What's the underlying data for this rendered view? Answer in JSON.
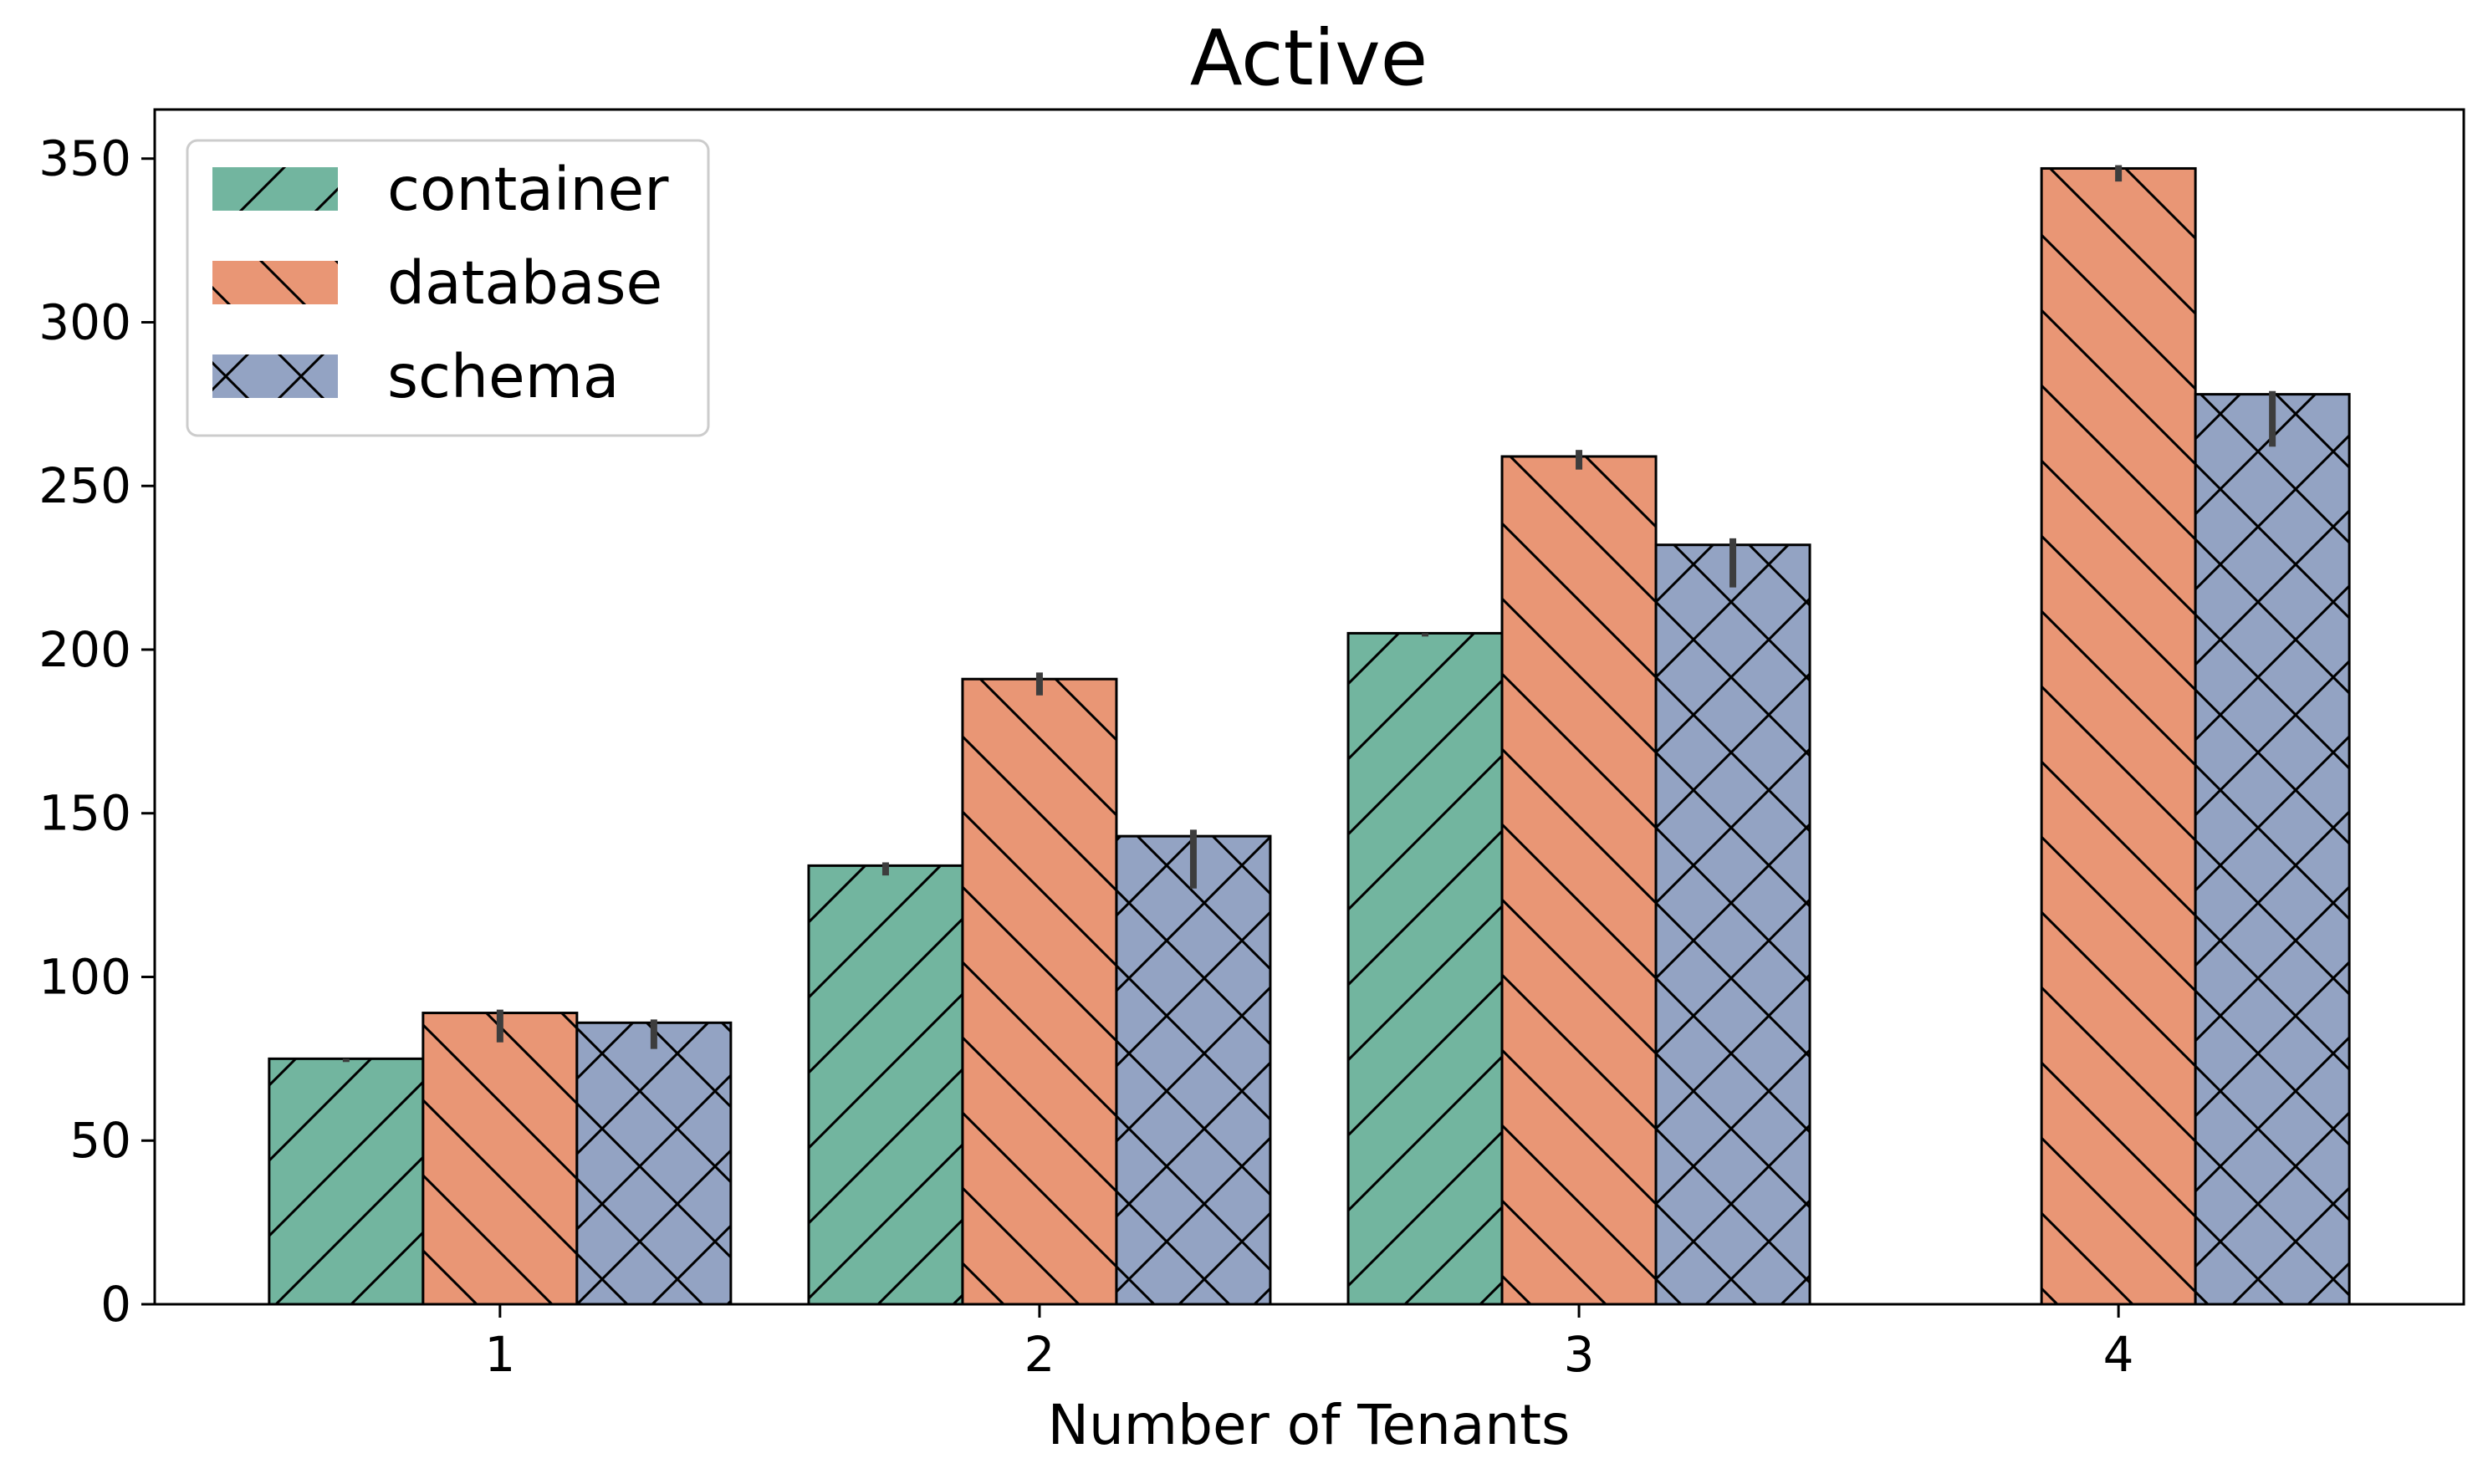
{
  "chart_data": {
    "type": "bar",
    "title": "Active",
    "xlabel": "Number of Tenants",
    "ylabel": "",
    "categories": [
      "1",
      "2",
      "3",
      "4"
    ],
    "ylim": [
      0,
      365
    ],
    "yticks": [
      0,
      50,
      100,
      150,
      200,
      250,
      300,
      350
    ],
    "yticklabels": [
      "0",
      "50",
      "100",
      "150",
      "200",
      "250",
      "300",
      "350"
    ],
    "grid": false,
    "legend_position": "top-left",
    "series": [
      {
        "name": "container",
        "color": "#72b59f",
        "hatch": "forward-diagonal",
        "values": [
          75,
          134,
          205,
          null
        ],
        "err_low": [
          74,
          131,
          204,
          null
        ],
        "err_high": [
          75,
          135,
          205,
          null
        ]
      },
      {
        "name": "database",
        "color": "#e99675",
        "hatch": "back-diagonal",
        "values": [
          89,
          191,
          259,
          347
        ],
        "err_low": [
          80,
          186,
          255,
          343
        ],
        "err_high": [
          90,
          193,
          261,
          348
        ]
      },
      {
        "name": "schema",
        "color": "#93a3c3",
        "hatch": "cross",
        "values": [
          86,
          143,
          232,
          278
        ],
        "err_low": [
          78,
          127,
          219,
          262
        ],
        "err_high": [
          87,
          145,
          234,
          279
        ]
      }
    ]
  }
}
